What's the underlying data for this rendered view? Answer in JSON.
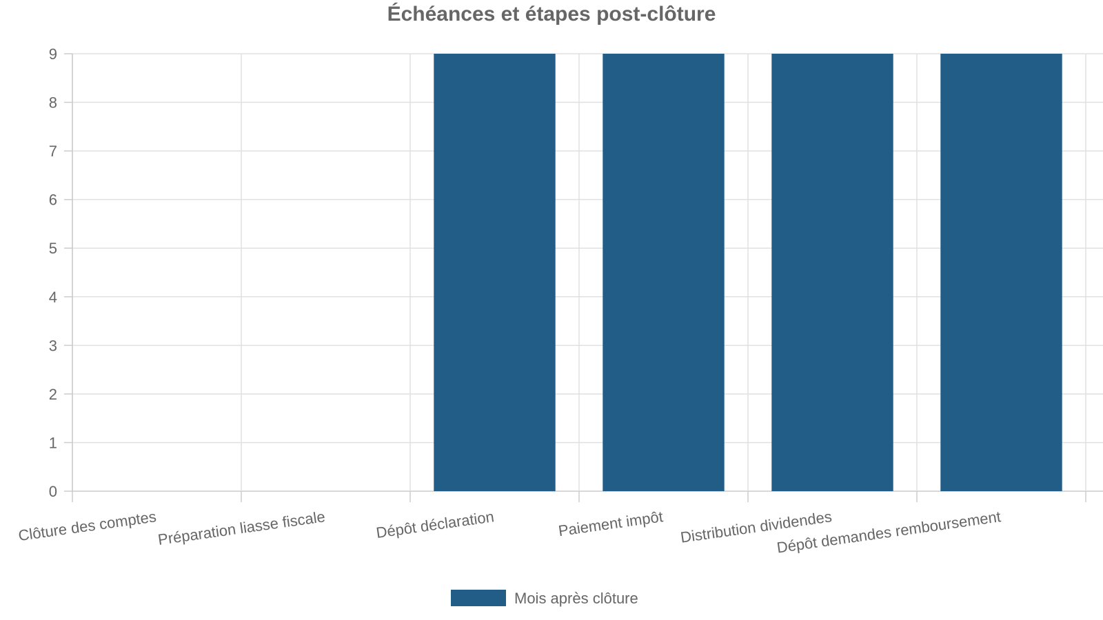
{
  "chart_data": {
    "type": "bar",
    "title": "Échéances et étapes post-clôture",
    "categories": [
      "Clôture des comptes",
      "Préparation liasse fiscale",
      "Dépôt déclaration",
      "Paiement impôt",
      "Distribution dividendes",
      "Dépôt demandes remboursement"
    ],
    "series": [
      {
        "name": "Mois après clôture",
        "values": [
          0,
          0,
          9,
          9,
          9,
          9
        ],
        "color": "#215d87"
      }
    ],
    "xlabel": "",
    "ylabel": "",
    "ylim": [
      0,
      9
    ],
    "yticks": [
      0,
      1,
      2,
      3,
      4,
      5,
      6,
      7,
      8,
      9
    ],
    "grid": true,
    "legend_position": "bottom"
  }
}
